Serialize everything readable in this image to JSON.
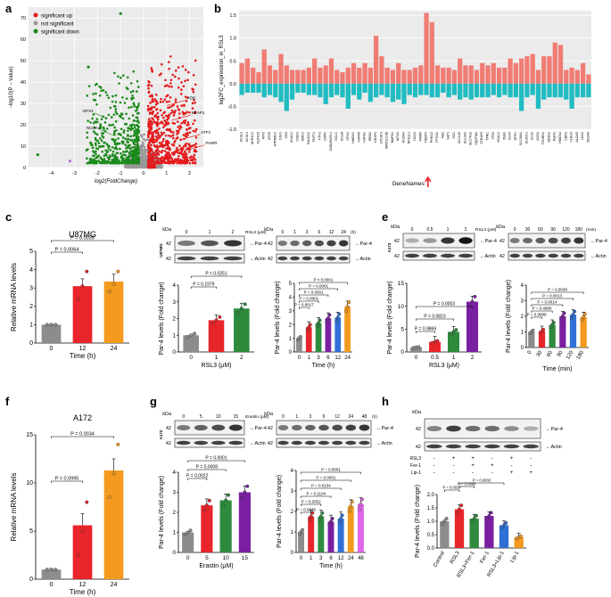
{
  "panels": {
    "a": "a",
    "b": "b",
    "c": "c",
    "d": "d",
    "e": "e",
    "f": "f",
    "g": "g",
    "h": "h"
  },
  "colors": {
    "up": "#e41a1c",
    "down": "#1a8a1a",
    "ns": "#999999",
    "pos": "#f07c73",
    "neg": "#20bcc1",
    "gray": "#8c8c8c",
    "red": "#e8252a",
    "green": "#2e8b3e",
    "purple": "#7b1fa2",
    "blue": "#2f6fd6",
    "orange": "#f39a1f",
    "magenta": "#e066e6"
  },
  "chart_data": [
    {
      "id": "a",
      "type": "scatter",
      "xlabel": "log2(FoldChange)",
      "ylabel": "−log10(P − value)",
      "xlim": [
        -5,
        2.6
      ],
      "ylim": [
        0,
        75
      ],
      "xticks": [
        "-4",
        "-3",
        "-2",
        "-1",
        "0",
        "1",
        "2"
      ],
      "yticks": [
        "0",
        "10",
        "20",
        "30",
        "40",
        "50",
        "60",
        "70"
      ],
      "legend": [
        "significant up",
        "not significant",
        "significant down"
      ],
      "annotations": [
        {
          "label": "PDB",
          "x": 1.0,
          "y": 29
        },
        {
          "label": "KEAP1",
          "x": 1.2,
          "y": 22
        },
        {
          "label": "ATF3",
          "x": 1.6,
          "y": 13
        },
        {
          "label": "PAWR",
          "x": 1.8,
          "y": 8
        },
        {
          "label": "GPX4",
          "x": -1.6,
          "y": 23
        },
        {
          "label": "NCOA4",
          "x": -1.3,
          "y": 15
        }
      ]
    },
    {
      "id": "b",
      "type": "bar",
      "ylabel": "log2FC_expression_in_RSL3",
      "xlabel": "GeneNames",
      "ylim": [
        -1.0,
        1.6
      ],
      "yticks": [
        "-1.0",
        "-0.5",
        "0.0",
        "0.5",
        "1.0",
        "1.5"
      ],
      "categories": [
        "ACSL3",
        "ACSL4",
        "AKR1C1",
        "ALOX15",
        "ATF3",
        "ATG5",
        "ATP5MC3",
        "CAV1",
        "CBS",
        "CHAC1",
        "CISD1",
        "EMC2",
        "FANCD2",
        "FDFT1",
        "FTH1",
        "G6PD",
        "GABARAPL1",
        "GCLC",
        "GCLM",
        "GPX4",
        "HMOX1",
        "HSPA5",
        "HSPB1",
        "IREB2",
        "KEAP1",
        "LPCAT3",
        "MAP1LC3B",
        "MAPK1",
        "MT1G",
        "NCOA4",
        "NFE2L2",
        "NOX1",
        "PAWR",
        "PEBP1",
        "PHKG2",
        "PTGS2",
        "RB1",
        "SAT1",
        "SCD",
        "SLC1A5",
        "SLC3A2",
        "SLC7A11",
        "SQSTM1",
        "STEAP3",
        "TFRC",
        "TP53",
        "VDAC2",
        "ZEB1",
        "CD44",
        "DPP4",
        "SLC38A1",
        "ELAVL1",
        "GLS2",
        "ACO1",
        "TXNRD1",
        "SESN2",
        "NQO1",
        "HMOX2",
        "CBR1",
        "VLDLR",
        "ALOX5",
        "ULK1",
        "VEGFA"
      ],
      "values": [
        0.45,
        0.55,
        0.35,
        0.25,
        0.75,
        0.4,
        0.3,
        0.65,
        0.4,
        0.3,
        0.3,
        0.3,
        0.35,
        0.55,
        0.35,
        0.4,
        0.55,
        0.3,
        0.25,
        0.35,
        0.45,
        0.35,
        0.45,
        0.35,
        1.05,
        0.6,
        0.35,
        0.3,
        0.45,
        0.3,
        0.3,
        0.35,
        0.4,
        1.55,
        1.35,
        0.4,
        0.35,
        0.35,
        0.3,
        0.55,
        0.4,
        0.4,
        0.3,
        0.45,
        0.4,
        0.45,
        0.35,
        0.35,
        0.55,
        0.45,
        0.55,
        0.6,
        0.65,
        0.3,
        0.6,
        0.6,
        0.9,
        0.85,
        0.3,
        0.35,
        0.3,
        0.45,
        0.2
      ],
      "neg_values": [
        -0.25,
        -0.2,
        -0.2,
        -0.2,
        -0.3,
        -0.25,
        -0.3,
        -0.4,
        -0.6,
        -0.35,
        -0.2,
        -0.2,
        -0.25,
        -0.25,
        -0.3,
        -0.45,
        -0.3,
        -0.25,
        -0.3,
        -0.55,
        -0.25,
        -0.35,
        -0.2,
        -0.4,
        -0.3,
        -0.25,
        -0.3,
        -0.4,
        -0.35,
        -0.45,
        -0.25,
        -0.3,
        -0.25,
        -0.25,
        -0.3,
        -0.3,
        -0.2,
        -0.3,
        -0.25,
        -0.35,
        -0.3,
        -0.35,
        -0.3,
        -0.3,
        -0.3,
        -0.25,
        -0.3,
        -0.25,
        -0.3,
        -0.3,
        -0.6,
        -0.3,
        -0.25,
        -0.55,
        -0.35,
        -0.3,
        -0.3,
        -0.3,
        -0.35,
        -0.55,
        -0.3,
        -0.3,
        -0.3
      ],
      "arrow_at": "PAWR"
    },
    {
      "id": "c",
      "type": "bar",
      "title": "U87MG",
      "ylabel": "Relative mRNA levels",
      "xlabel": "Time (h)",
      "ylim": [
        0,
        5
      ],
      "yticks": [
        "0",
        "1",
        "2",
        "3",
        "4",
        "5"
      ],
      "categories": [
        "0",
        "12",
        "24"
      ],
      "values": [
        1.0,
        3.1,
        3.35
      ],
      "colors": [
        "#8c8c8c",
        "#e8252a",
        "#f39a1f"
      ],
      "points": [
        [
          1,
          1,
          1
        ],
        [
          2.4,
          3.1,
          3.9
        ],
        [
          2.8,
          3.2,
          3.9
        ]
      ],
      "pvals": [
        "P = 0.0064",
        "P = 0.0035"
      ]
    },
    {
      "id": "d1",
      "type": "bar",
      "ylabel": "Par-4 levels (Fold change)",
      "xlabel": "RSL3 (μM)",
      "ylim": [
        0,
        4
      ],
      "yticks": [
        "0",
        "1",
        "2",
        "3",
        "4"
      ],
      "categories": [
        "0",
        "1",
        "2"
      ],
      "values": [
        1.0,
        1.9,
        2.6
      ],
      "colors": [
        "#8c8c8c",
        "#e8252a",
        "#2e8b3e"
      ],
      "pvals": [
        "P = 0.1979",
        "P = 0.0251"
      ],
      "blot": {
        "header": "kDa",
        "lanes": [
          "0",
          "1",
          "2"
        ],
        "cond": "RSL3 (μM)",
        "cell": "U87MG",
        "bands": [
          "Par-4",
          "Actin"
        ],
        "mw": "42"
      }
    },
    {
      "id": "d2",
      "type": "bar",
      "ylabel": "Par-4 levels (Fold change)",
      "xlabel": "Time (h)",
      "ylim": [
        0,
        5
      ],
      "yticks": [
        "0",
        "1",
        "2",
        "3",
        "4",
        "5"
      ],
      "categories": [
        "0",
        "1",
        "3",
        "6",
        "12",
        "24"
      ],
      "values": [
        1.0,
        1.8,
        2.1,
        2.45,
        2.5,
        3.3
      ],
      "colors": [
        "#8c8c8c",
        "#e8252a",
        "#2e8b3e",
        "#7b1fa2",
        "#2f6fd6",
        "#f39a1f"
      ],
      "pvals": [
        "P = 0.0017",
        "P = 0.0001",
        "P = 0.0001",
        "P = 0.0001",
        "P < 0.0001"
      ],
      "blot": {
        "header": "kDa",
        "lanes": [
          "0",
          "1",
          "3",
          "6",
          "12",
          "24"
        ],
        "cond": "(h)",
        "bands": [
          "Par-4",
          "Actin"
        ],
        "mw": "42"
      }
    },
    {
      "id": "e1",
      "type": "bar",
      "ylabel": "Par-4 levels (Fold change)",
      "xlabel": "RSL3 (μM)",
      "ylim": [
        0,
        15
      ],
      "yticks": [
        "0",
        "5",
        "10",
        "15"
      ],
      "categories": [
        "0",
        "0.5",
        "1",
        "2"
      ],
      "values": [
        1.0,
        2.2,
        4.4,
        11.0
      ],
      "colors": [
        "#8c8c8c",
        "#e8252a",
        "#2e8b3e",
        "#7b1fa2"
      ],
      "pvals": [
        "P = 0.9869",
        "P = 0.0823",
        "P = 0.0003"
      ],
      "blot": {
        "header": "kDa",
        "lanes": [
          "0",
          "0.5",
          "1",
          "2"
        ],
        "cond": "RSL3 (μM)",
        "cell": "A172",
        "bands": [
          "Par-4",
          "Actin"
        ],
        "mw": "42"
      }
    },
    {
      "id": "e2",
      "type": "bar",
      "ylabel": "Par-4 levels (Fold change)",
      "xlabel": "Time (min)",
      "ylim": [
        0,
        4
      ],
      "yticks": [
        "0",
        "1",
        "2",
        "3",
        "4"
      ],
      "categories": [
        "0",
        "30",
        "60",
        "90",
        "120",
        "180"
      ],
      "values": [
        1.0,
        1.05,
        1.45,
        2.0,
        2.1,
        1.95
      ],
      "colors": [
        "#8c8c8c",
        "#e8252a",
        "#2e8b3e",
        "#7b1fa2",
        "#2f6fd6",
        "#f39a1f"
      ],
      "pvals": [
        "P = 0.9999",
        "P = 0.4980",
        "P = 0.0014",
        "P = 0.0013",
        "P = 0.0038"
      ],
      "blot": {
        "header": "kDa",
        "lanes": [
          "0",
          "30",
          "60",
          "90",
          "120",
          "180"
        ],
        "cond": "(min)",
        "bands": [
          "Par-4",
          "Actin"
        ],
        "mw": "42"
      }
    },
    {
      "id": "f",
      "type": "bar",
      "title": "A172",
      "ylabel": "Relative mRNA levels",
      "xlabel": "Time (h)",
      "ylim": [
        0,
        15
      ],
      "yticks": [
        "0",
        "5",
        "10",
        "15"
      ],
      "categories": [
        "0",
        "12",
        "24"
      ],
      "values": [
        1.0,
        5.6,
        11.3
      ],
      "colors": [
        "#8c8c8c",
        "#e8252a",
        "#f39a1f"
      ],
      "points": [
        [
          1,
          1,
          1
        ],
        [
          2.5,
          5,
          8
        ],
        [
          8.5,
          11,
          14
        ]
      ],
      "pvals": [
        "P = 0.0995",
        "P = 0.0034"
      ]
    },
    {
      "id": "g1",
      "type": "bar",
      "ylabel": "Par-4 levels (Fold change)",
      "xlabel": "Erastin (μM)",
      "ylim": [
        0,
        4
      ],
      "yticks": [
        "0",
        "1",
        "2",
        "3",
        "4"
      ],
      "categories": [
        "0",
        "5",
        "10",
        "15"
      ],
      "values": [
        1.0,
        2.35,
        2.6,
        3.0
      ],
      "colors": [
        "#8c8c8c",
        "#e8252a",
        "#2e8b3e",
        "#7b1fa2"
      ],
      "pvals": [
        "P = 0.0022",
        "P = 0.0008",
        "P = 0.0001"
      ],
      "blot": {
        "header": "kDa",
        "lanes": [
          "0",
          "5",
          "10",
          "15"
        ],
        "cond": "Erastin (μM)",
        "cell": "A172",
        "bands": [
          "Par-4",
          "Actin"
        ],
        "mw": "42"
      }
    },
    {
      "id": "g2",
      "type": "bar",
      "ylabel": "Par-4 levels (Fold change)",
      "xlabel": "Time (h)",
      "ylim": [
        0,
        4
      ],
      "yticks": [
        "0",
        "1",
        "2",
        "3",
        "4"
      ],
      "categories": [
        "0",
        "1",
        "3",
        "6",
        "12",
        "24",
        "48"
      ],
      "values": [
        1.0,
        1.75,
        1.75,
        1.5,
        1.65,
        2.25,
        2.35
      ],
      "colors": [
        "#8c8c8c",
        "#e8252a",
        "#2e8b3e",
        "#7b1fa2",
        "#2f6fd6",
        "#f39a1f",
        "#e066e6"
      ],
      "pvals": [
        "P = 0.0036",
        "P = 0.0052",
        "P = 0.1104",
        "P = 0.0134",
        "P = 0.0001",
        "P = 0.0001"
      ],
      "blot": {
        "header": "kDa",
        "lanes": [
          "0",
          "1",
          "3",
          "6",
          "12",
          "24",
          "48"
        ],
        "cond": "(h)",
        "bands": [
          "Par-4",
          "Actin"
        ],
        "mw": "42"
      }
    },
    {
      "id": "h",
      "type": "bar",
      "ylabel": "Par-4 levels (Fold change)",
      "xlabel": "",
      "ylim": [
        0,
        2
      ],
      "yticks": [
        "0.0",
        "0.5",
        "1.0",
        "1.5",
        "2.0"
      ],
      "categories": [
        "Control",
        "RSL3",
        "RSL3+Fer-1",
        "Fer-1",
        "RSL3+Lip-1",
        "Lip-1"
      ],
      "values": [
        1.0,
        1.45,
        1.1,
        1.2,
        0.85,
        0.4
      ],
      "colors": [
        "#8c8c8c",
        "#e8252a",
        "#2e8b3e",
        "#7b1fa2",
        "#2f6fd6",
        "#f39a1f"
      ],
      "pvals": [
        "P = 0.0027",
        "P = 0.0688",
        "P = 0.0002"
      ],
      "blot": {
        "header": "kDa",
        "bands": [
          "Par-4",
          "Actin"
        ],
        "mw": "42",
        "rows": [
          {
            "name": "RSL3",
            "marks": [
              "-",
              "+",
              "+",
              "-",
              "+",
              "-"
            ]
          },
          {
            "name": "Fer-1",
            "marks": [
              "-",
              "-",
              "+",
              "+",
              "-",
              "-"
            ]
          },
          {
            "name": "Lip-1",
            "marks": [
              "-",
              "-",
              "-",
              "-",
              "+",
              "+"
            ]
          }
        ]
      }
    }
  ]
}
